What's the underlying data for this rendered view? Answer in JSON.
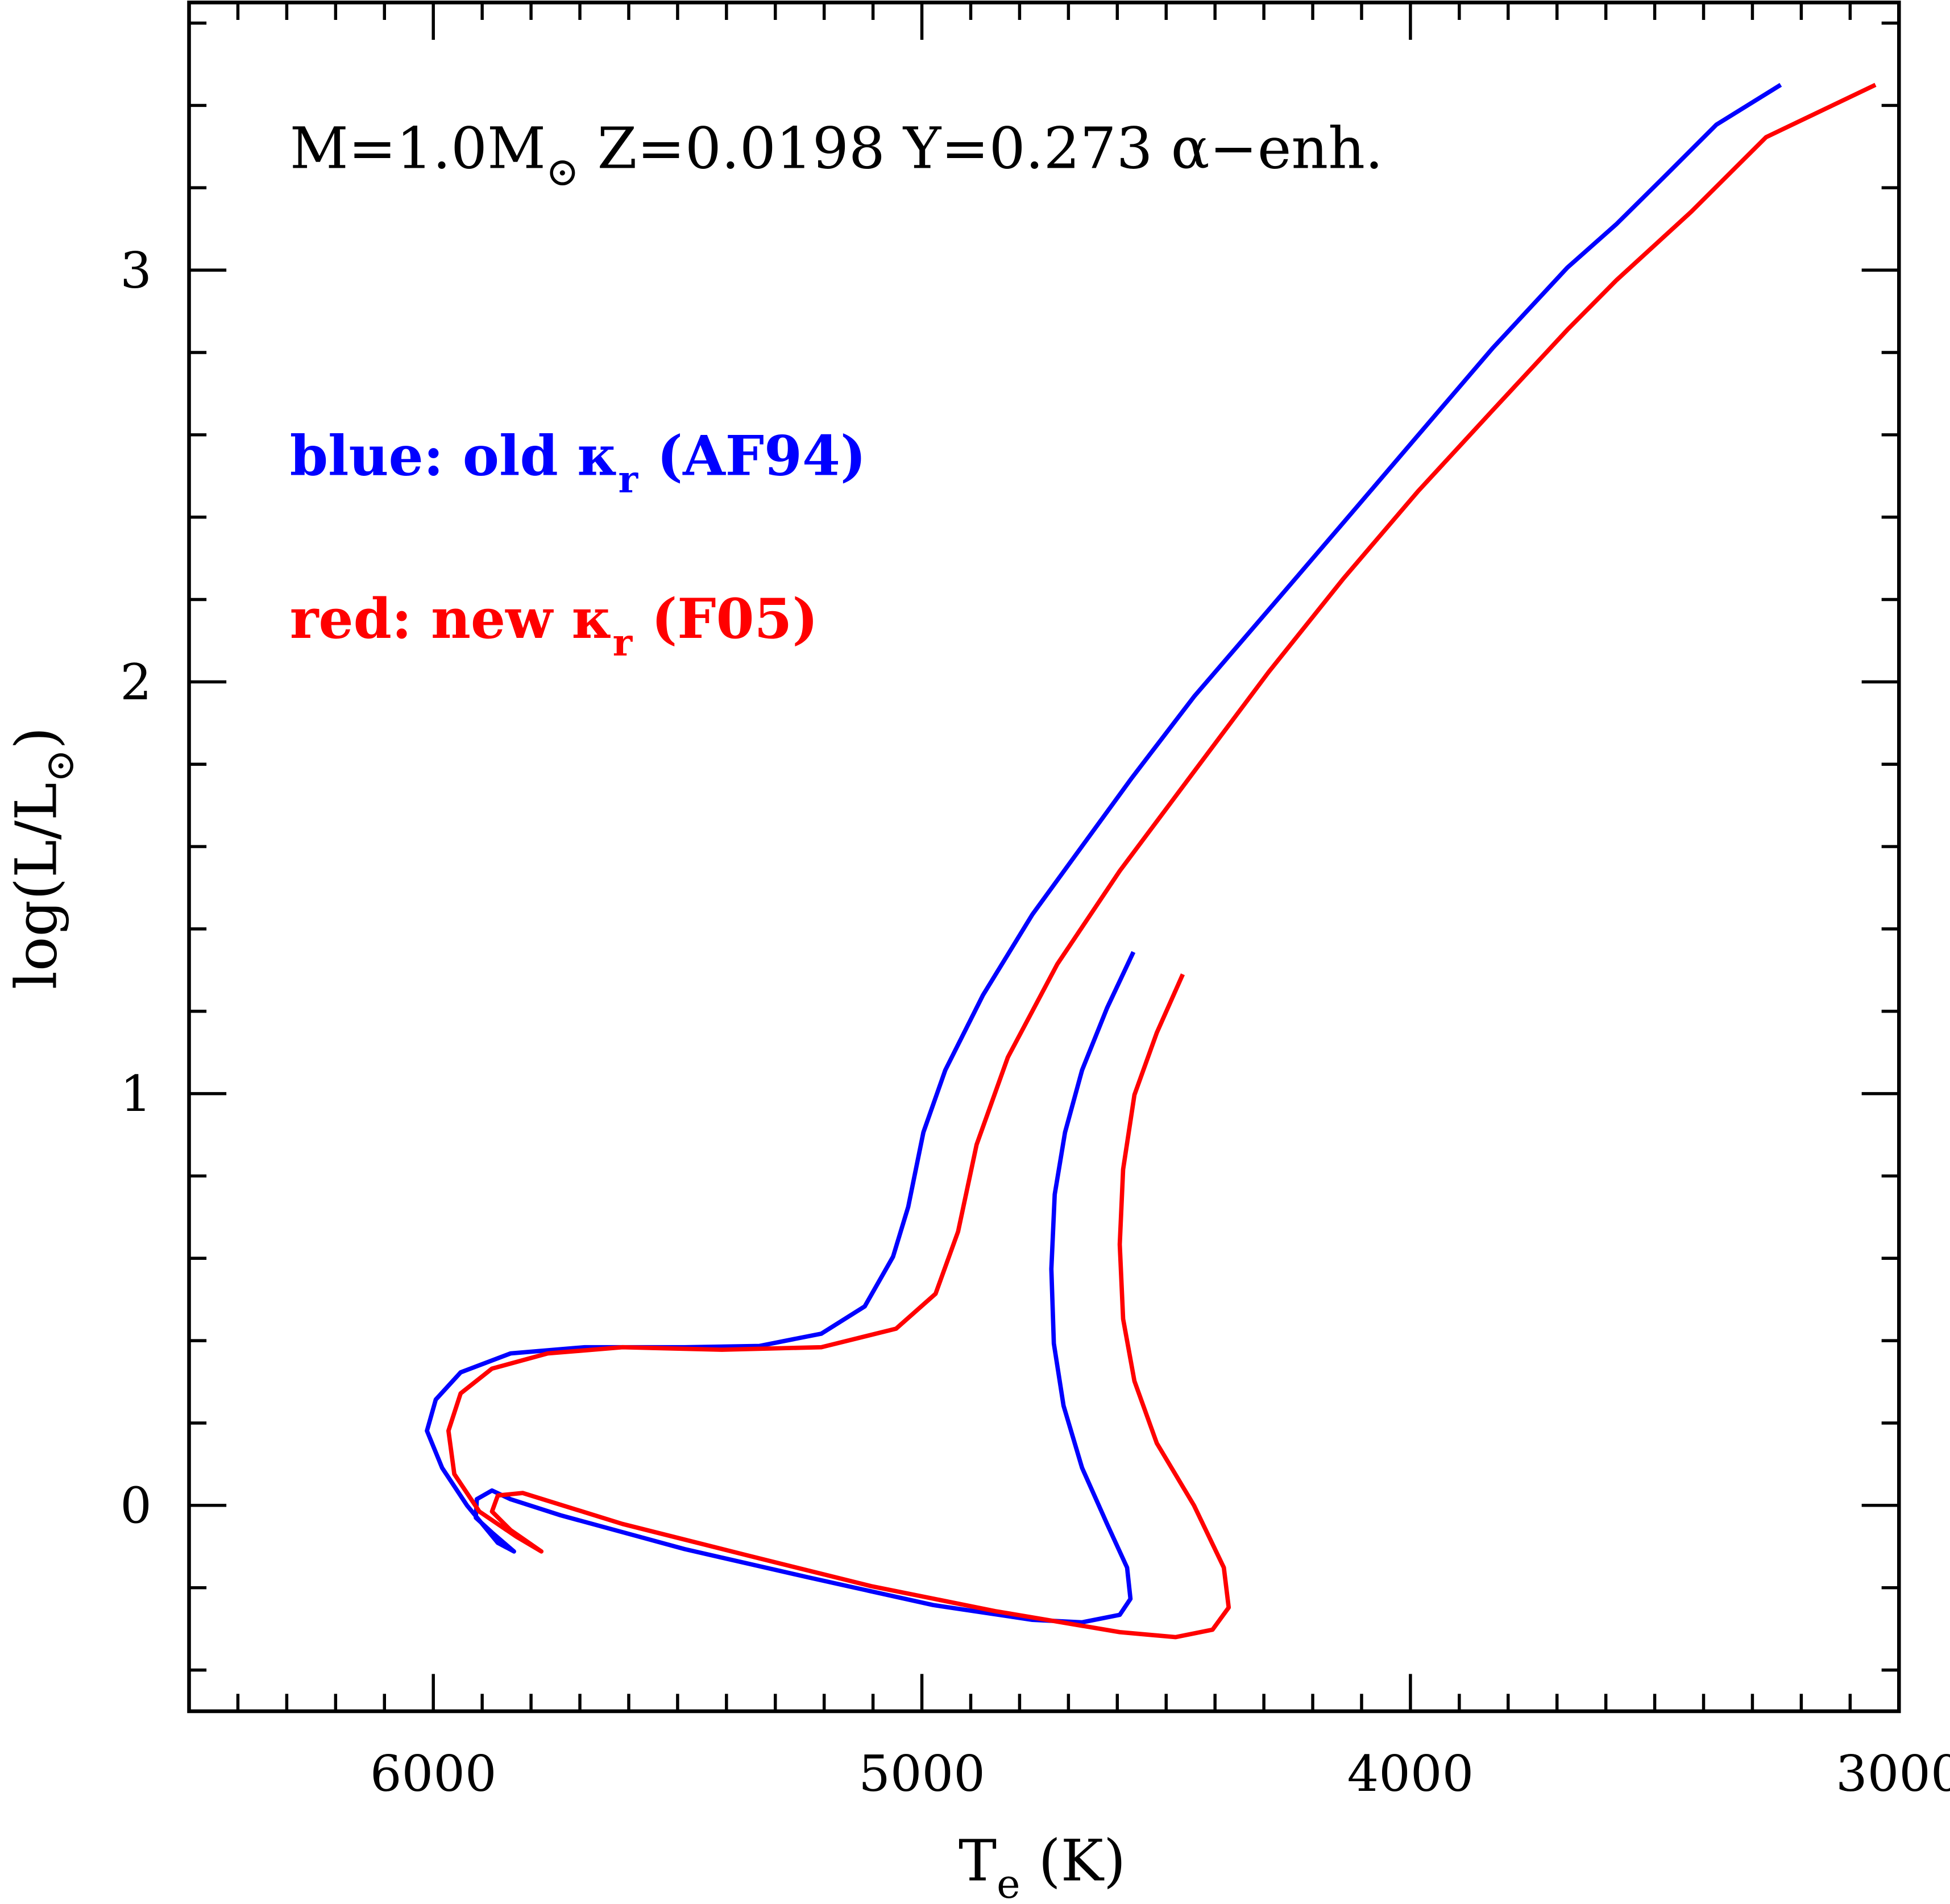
{
  "chart_data": {
    "type": "line",
    "annotation": [
      "M=1.0M",
      "⊙",
      " Z=0.0198  Y=0.273 α−enh."
    ],
    "x_label": [
      "T",
      "e",
      " (K)"
    ],
    "y_label": [
      "log(L/L",
      "⊙",
      ")"
    ],
    "xlim": [
      6500,
      3000
    ],
    "ylim": [
      -0.5,
      3.65
    ],
    "xticks": [
      6000,
      5000,
      4000,
      3000
    ],
    "yticks": [
      0,
      1,
      2,
      3
    ],
    "xminorticks": [
      6500,
      6400,
      6300,
      6200,
      6100,
      5900,
      5800,
      5700,
      5600,
      5500,
      5400,
      5300,
      5200,
      5100,
      4900,
      4800,
      4700,
      4600,
      4500,
      4400,
      4300,
      4200,
      4100,
      3900,
      3800,
      3700,
      3600,
      3500,
      3400,
      3300,
      3200,
      3100
    ],
    "yminorticks": [
      -0.4,
      -0.2,
      0.2,
      0.4,
      0.6,
      0.8,
      1.2,
      1.4,
      1.6,
      1.8,
      2.2,
      2.4,
      2.6,
      2.8,
      3.2,
      3.4,
      3.6
    ],
    "series": [
      {
        "name": [
          "blue: old κ",
          "r",
          " (AF94)"
        ],
        "color": "#0000ff",
        "x": [
          4567,
          4621,
          4672,
          4707,
          4728,
          4735,
          4730,
          4710,
          4672,
          4621,
          4580,
          4573,
          4595,
          4672,
          4774,
          4977,
          5232,
          5486,
          5740,
          5842,
          5880,
          5911,
          5913,
          5880,
          5835,
          5868,
          5931,
          5982,
          6013,
          5995,
          5944,
          5842,
          5690,
          5486,
          5333,
          5206,
          5117,
          5059,
          5028,
          4997,
          4952,
          4875,
          4774,
          4672,
          4570,
          4443,
          4290,
          4137,
          3985,
          3832,
          3679,
          3578,
          3476,
          3374,
          3242
        ],
        "values": [
          1.344,
          1.208,
          1.057,
          0.906,
          0.755,
          0.574,
          0.393,
          0.242,
          0.091,
          -0.045,
          -0.151,
          -0.227,
          -0.266,
          -0.284,
          -0.278,
          -0.242,
          -0.175,
          -0.106,
          -0.024,
          0.015,
          0.036,
          0.015,
          -0.03,
          -0.066,
          -0.112,
          -0.091,
          0,
          0.091,
          0.181,
          0.257,
          0.323,
          0.369,
          0.384,
          0.384,
          0.387,
          0.417,
          0.483,
          0.604,
          0.725,
          0.906,
          1.057,
          1.239,
          1.435,
          1.601,
          1.767,
          1.964,
          2.175,
          2.387,
          2.598,
          2.81,
          3.006,
          3.112,
          3.232,
          3.353,
          3.45
        ]
      },
      {
        "name": [
          "red: new κ",
          "r",
          " (F05)"
        ],
        "color": "#ff0000",
        "x": [
          4466,
          4519,
          4565,
          4588,
          4595,
          4588,
          4565,
          4519,
          4443,
          4382,
          4372,
          4405,
          4481,
          4595,
          4850,
          5104,
          5359,
          5613,
          5817,
          5868,
          5880,
          5842,
          5779,
          5830,
          5906,
          5957,
          5969,
          5944,
          5880,
          5766,
          5613,
          5410,
          5206,
          5053,
          4972,
          4926,
          4888,
          4824,
          4723,
          4595,
          4443,
          4290,
          4137,
          3985,
          3832,
          3679,
          3578,
          3425,
          3272,
          3048
        ],
        "values": [
          1.29,
          1.148,
          0.997,
          0.816,
          0.634,
          0.453,
          0.302,
          0.151,
          0,
          -0.151,
          -0.248,
          -0.302,
          -0.32,
          -0.308,
          -0.257,
          -0.196,
          -0.121,
          -0.045,
          0.03,
          0.024,
          -0.015,
          -0.06,
          -0.112,
          -0.076,
          -0.015,
          0.076,
          0.181,
          0.272,
          0.332,
          0.369,
          0.384,
          0.378,
          0.384,
          0.429,
          0.514,
          0.665,
          0.876,
          1.088,
          1.314,
          1.541,
          1.782,
          2.024,
          2.251,
          2.462,
          2.659,
          2.855,
          2.976,
          3.142,
          3.323,
          3.45
        ]
      }
    ]
  }
}
